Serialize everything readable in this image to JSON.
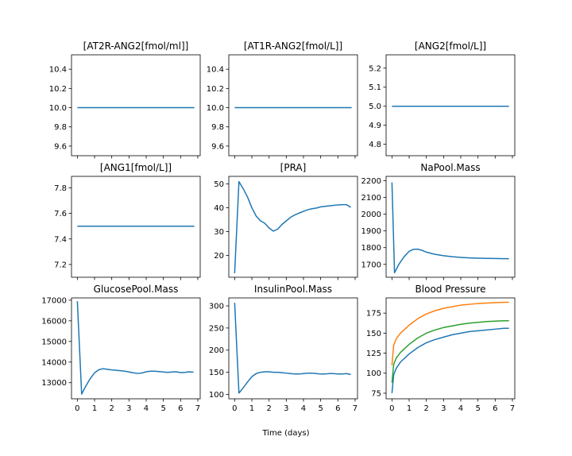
{
  "figure": {
    "xlabel": "Time (days)"
  },
  "chart_data": [
    {
      "type": "line",
      "title": "[AT2R-ANG2[fmol/ml]]",
      "ylim": [
        9.5,
        10.55
      ],
      "yticks": [
        9.6,
        9.8,
        10.0,
        10.2,
        10.4
      ],
      "ytick_labels": [
        "9.6",
        "9.8",
        "10.0",
        "10.2",
        "10.4"
      ],
      "series": [
        {
          "color": "#1f77b4",
          "x": [
            0,
            6.8
          ],
          "y": [
            10.0,
            10.0
          ]
        }
      ]
    },
    {
      "type": "line",
      "title": "[AT1R-ANG2[fmol/L]]",
      "ylim": [
        9.5,
        10.55
      ],
      "yticks": [
        9.6,
        9.8,
        10.0,
        10.2,
        10.4
      ],
      "ytick_labels": [
        "9.6",
        "9.8",
        "10.0",
        "10.2",
        "10.4"
      ],
      "series": [
        {
          "color": "#1f77b4",
          "x": [
            0,
            6.8
          ],
          "y": [
            10.0,
            10.0
          ]
        }
      ]
    },
    {
      "type": "line",
      "title": "[ANG2[fmol/L]]",
      "ylim": [
        4.74,
        5.27
      ],
      "yticks": [
        4.8,
        4.9,
        5.0,
        5.1,
        5.2
      ],
      "ytick_labels": [
        "4.8",
        "4.9",
        "5.0",
        "5.1",
        "5.2"
      ],
      "series": [
        {
          "color": "#1f77b4",
          "x": [
            0,
            6.8
          ],
          "y": [
            5.0,
            5.0
          ]
        }
      ]
    },
    {
      "type": "line",
      "title": "[ANG1[fmol/L]]",
      "ylim": [
        7.1,
        7.89
      ],
      "yticks": [
        7.2,
        7.4,
        7.6,
        7.8
      ],
      "ytick_labels": [
        "7.2",
        "7.4",
        "7.6",
        "7.8"
      ],
      "series": [
        {
          "color": "#1f77b4",
          "x": [
            0,
            6.8
          ],
          "y": [
            7.5,
            7.5
          ]
        }
      ]
    },
    {
      "type": "line",
      "title": "[PRA]",
      "ylim": [
        10.8,
        53.2
      ],
      "yticks": [
        20,
        30,
        40,
        50
      ],
      "ytick_labels": [
        "20",
        "30",
        "40",
        "50"
      ],
      "series": [
        {
          "color": "#1f77b4",
          "x": [
            0,
            0.25,
            0.5,
            0.75,
            1.0,
            1.25,
            1.5,
            1.75,
            2.0,
            2.25,
            2.5,
            2.75,
            3.0,
            3.25,
            3.5,
            3.75,
            4.0,
            4.25,
            4.5,
            4.75,
            5.0,
            5.25,
            5.5,
            5.75,
            6.0,
            6.25,
            6.5,
            6.75
          ],
          "y": [
            12.5,
            51,
            48,
            44.5,
            40,
            36.5,
            34.5,
            33.5,
            31.5,
            30.2,
            31,
            33,
            34.5,
            36,
            37,
            37.8,
            38.5,
            39.2,
            39.6,
            39.9,
            40.4,
            40.6,
            40.8,
            41.0,
            41.2,
            41.3,
            41.3,
            40.2
          ]
        }
      ]
    },
    {
      "type": "line",
      "title": "NaPool.Mass",
      "ylim": [
        1623,
        2226
      ],
      "yticks": [
        1700,
        1800,
        1900,
        2000,
        2100,
        2200
      ],
      "ytick_labels": [
        "1700",
        "1800",
        "1900",
        "2000",
        "2100",
        "2200"
      ],
      "series": [
        {
          "color": "#1f77b4",
          "x": [
            0,
            0.15,
            0.4,
            0.7,
            1.0,
            1.25,
            1.5,
            1.75,
            2.0,
            2.5,
            3.0,
            3.5,
            4.0,
            4.5,
            5.0,
            5.5,
            6.0,
            6.5,
            6.8
          ],
          "y": [
            2190,
            1650,
            1700,
            1745,
            1778,
            1790,
            1791,
            1784,
            1773,
            1760,
            1752,
            1746,
            1742,
            1739,
            1737,
            1736,
            1735,
            1734,
            1734
          ]
        }
      ]
    },
    {
      "type": "line",
      "title": "GlucosePool.Mass",
      "ylim": [
        12220,
        17110
      ],
      "yticks": [
        13000,
        14000,
        15000,
        16000,
        17000
      ],
      "ytick_labels": [
        "13000",
        "14000",
        "15000",
        "16000",
        "17000"
      ],
      "series": [
        {
          "color": "#1f77b4",
          "x": [
            0,
            0.25,
            0.5,
            0.75,
            1.0,
            1.25,
            1.5,
            1.75,
            2.0,
            2.25,
            2.5,
            2.75,
            3.0,
            3.25,
            3.5,
            3.75,
            4.0,
            4.25,
            4.5,
            4.75,
            5.0,
            5.25,
            5.5,
            5.75,
            6.0,
            6.25,
            6.5,
            6.75
          ],
          "y": [
            16950,
            12450,
            12850,
            13200,
            13480,
            13630,
            13680,
            13650,
            13620,
            13600,
            13580,
            13560,
            13520,
            13480,
            13450,
            13470,
            13530,
            13560,
            13560,
            13540,
            13520,
            13500,
            13520,
            13530,
            13490,
            13500,
            13530,
            13510
          ]
        }
      ]
    },
    {
      "type": "line",
      "title": "InsulinPool.Mass",
      "ylim": [
        90,
        318
      ],
      "yticks": [
        100,
        150,
        200,
        250,
        300
      ],
      "ytick_labels": [
        "100",
        "150",
        "200",
        "250",
        "300"
      ],
      "series": [
        {
          "color": "#1f77b4",
          "x": [
            0,
            0.25,
            0.5,
            0.75,
            1.0,
            1.25,
            1.5,
            1.75,
            2.0,
            2.25,
            2.5,
            2.75,
            3.0,
            3.25,
            3.5,
            3.75,
            4.0,
            4.25,
            4.5,
            4.75,
            5.0,
            5.25,
            5.5,
            5.75,
            6.0,
            6.25,
            6.5,
            6.75
          ],
          "y": [
            307,
            103,
            115,
            128,
            140,
            147,
            150,
            151,
            151,
            150,
            150,
            149,
            148,
            147,
            146,
            146,
            147,
            148,
            148,
            147,
            146,
            146,
            147,
            147,
            146,
            146,
            147,
            145
          ]
        }
      ]
    },
    {
      "type": "line",
      "title": "Blood Pressure",
      "ylim": [
        68,
        194
      ],
      "yticks": [
        75,
        100,
        125,
        150,
        175
      ],
      "ytick_labels": [
        "75",
        "100",
        "125",
        "150",
        "175"
      ],
      "series": [
        {
          "color": "#1f77b4",
          "x": [
            0,
            0.1,
            0.25,
            0.5,
            1.0,
            1.5,
            2.0,
            2.5,
            3.0,
            3.5,
            4.0,
            4.5,
            5.0,
            5.5,
            6.0,
            6.5,
            6.8
          ],
          "y": [
            75,
            98,
            106,
            114,
            124,
            132,
            138,
            142,
            145,
            148,
            150,
            152,
            153,
            154,
            155,
            156,
            156
          ]
        },
        {
          "color": "#ff7f0e",
          "x": [
            0,
            0.1,
            0.25,
            0.5,
            1.0,
            1.5,
            2.0,
            2.5,
            3.0,
            3.5,
            4.0,
            4.5,
            5.0,
            5.5,
            6.0,
            6.5,
            6.8
          ],
          "y": [
            110,
            135,
            143,
            150,
            160,
            168,
            174,
            178,
            181,
            183,
            185,
            186,
            187,
            187.5,
            188,
            188.5,
            188.5
          ]
        },
        {
          "color": "#2ca02c",
          "x": [
            0,
            0.1,
            0.25,
            0.5,
            1.0,
            1.5,
            2.0,
            2.5,
            3.0,
            3.5,
            4.0,
            4.5,
            5.0,
            5.5,
            6.0,
            6.5,
            6.8
          ],
          "y": [
            88,
            111,
            119,
            126,
            136,
            144,
            150,
            154,
            157,
            159,
            161,
            162.5,
            163.5,
            164.5,
            165,
            165.5,
            165.5
          ]
        }
      ]
    }
  ],
  "x_axis": {
    "xlim": [
      -0.34,
      7.14
    ],
    "xticks": [
      0,
      1,
      2,
      3,
      4,
      5,
      6,
      7
    ],
    "xtick_labels": [
      "0",
      "1",
      "2",
      "3",
      "4",
      "5",
      "6",
      "7"
    ]
  }
}
